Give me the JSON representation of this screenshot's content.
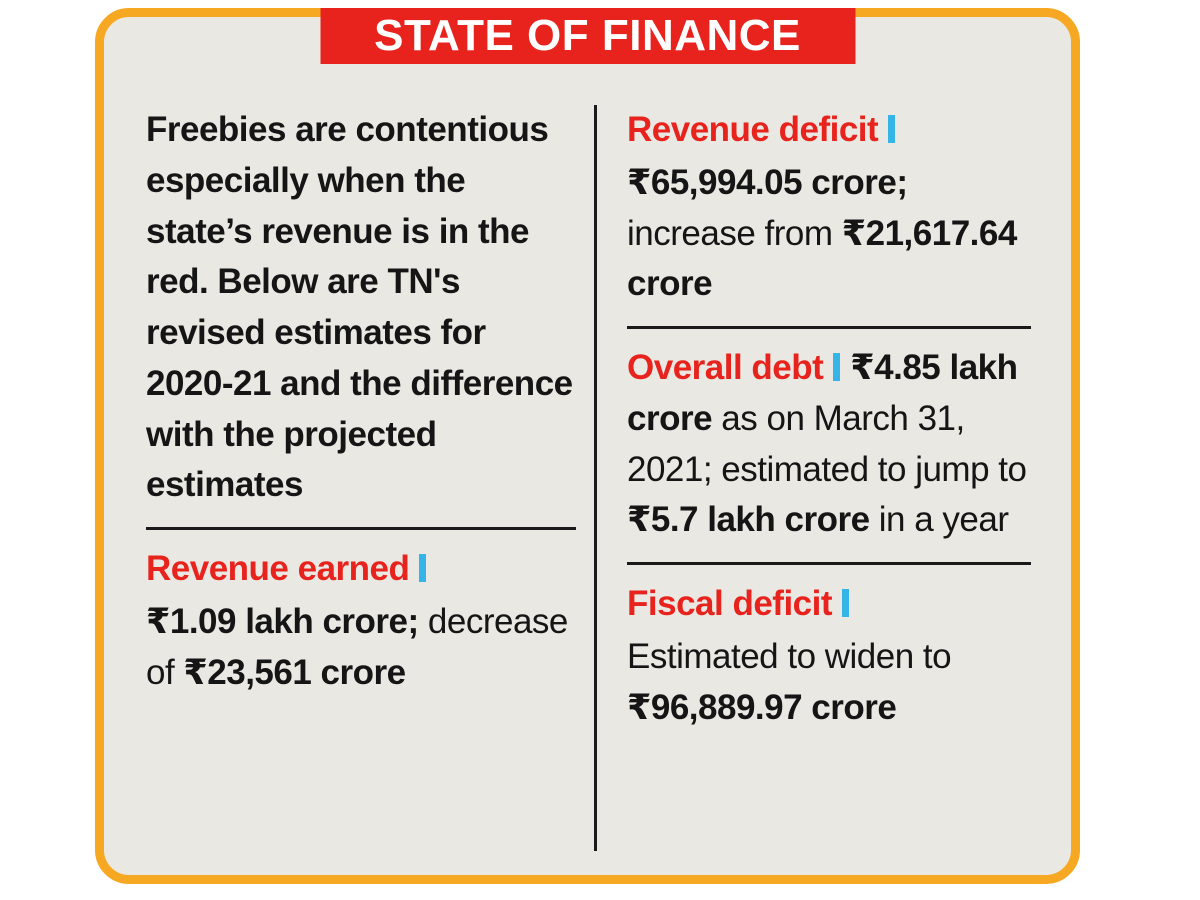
{
  "banner": {
    "title": "STATE OF FINANCE"
  },
  "colors": {
    "banner_red": "#e8231d",
    "heading_red": "#e8231d",
    "accent_blue": "#35b4e8",
    "border_orange": "#f7a823",
    "card_background": "#e9e8e2",
    "text": "#151515"
  },
  "intro": "Freebies are contentious especially when the state’s revenue is in the red. Below are TN's revised estimates for 2020-21 and the difference with the projected estimates",
  "sections": [
    {
      "id": "revenue-earned",
      "heading": "Revenue earned",
      "body": [
        {
          "bold": true,
          "text": "₹1.09 lakh crore;"
        },
        {
          "bold": false,
          "text": " decrease of "
        },
        {
          "bold": true,
          "text": "₹23,561 crore"
        }
      ]
    },
    {
      "id": "revenue-deficit",
      "heading": "Revenue deficit",
      "body": [
        {
          "bold": true,
          "text": "₹65,994.05 crore;"
        },
        {
          "bold": false,
          "text": " increase from "
        },
        {
          "bold": true,
          "text": "₹21,617.64 crore"
        }
      ]
    },
    {
      "id": "overall-debt",
      "heading": "Overall debt",
      "body": [
        {
          "bold": true,
          "text": "₹4.85 lakh crore"
        },
        {
          "bold": false,
          "text": " as on March 31, 2021; estimated to jump to "
        },
        {
          "bold": true,
          "text": "₹5.7 lakh crore"
        },
        {
          "bold": false,
          "text": " in a year"
        }
      ]
    },
    {
      "id": "fiscal-deficit",
      "heading": "Fiscal deficit",
      "body": [
        {
          "bold": false,
          "text": "Estimated to widen to "
        },
        {
          "bold": true,
          "text": "₹96,889.97 crore"
        }
      ]
    }
  ]
}
